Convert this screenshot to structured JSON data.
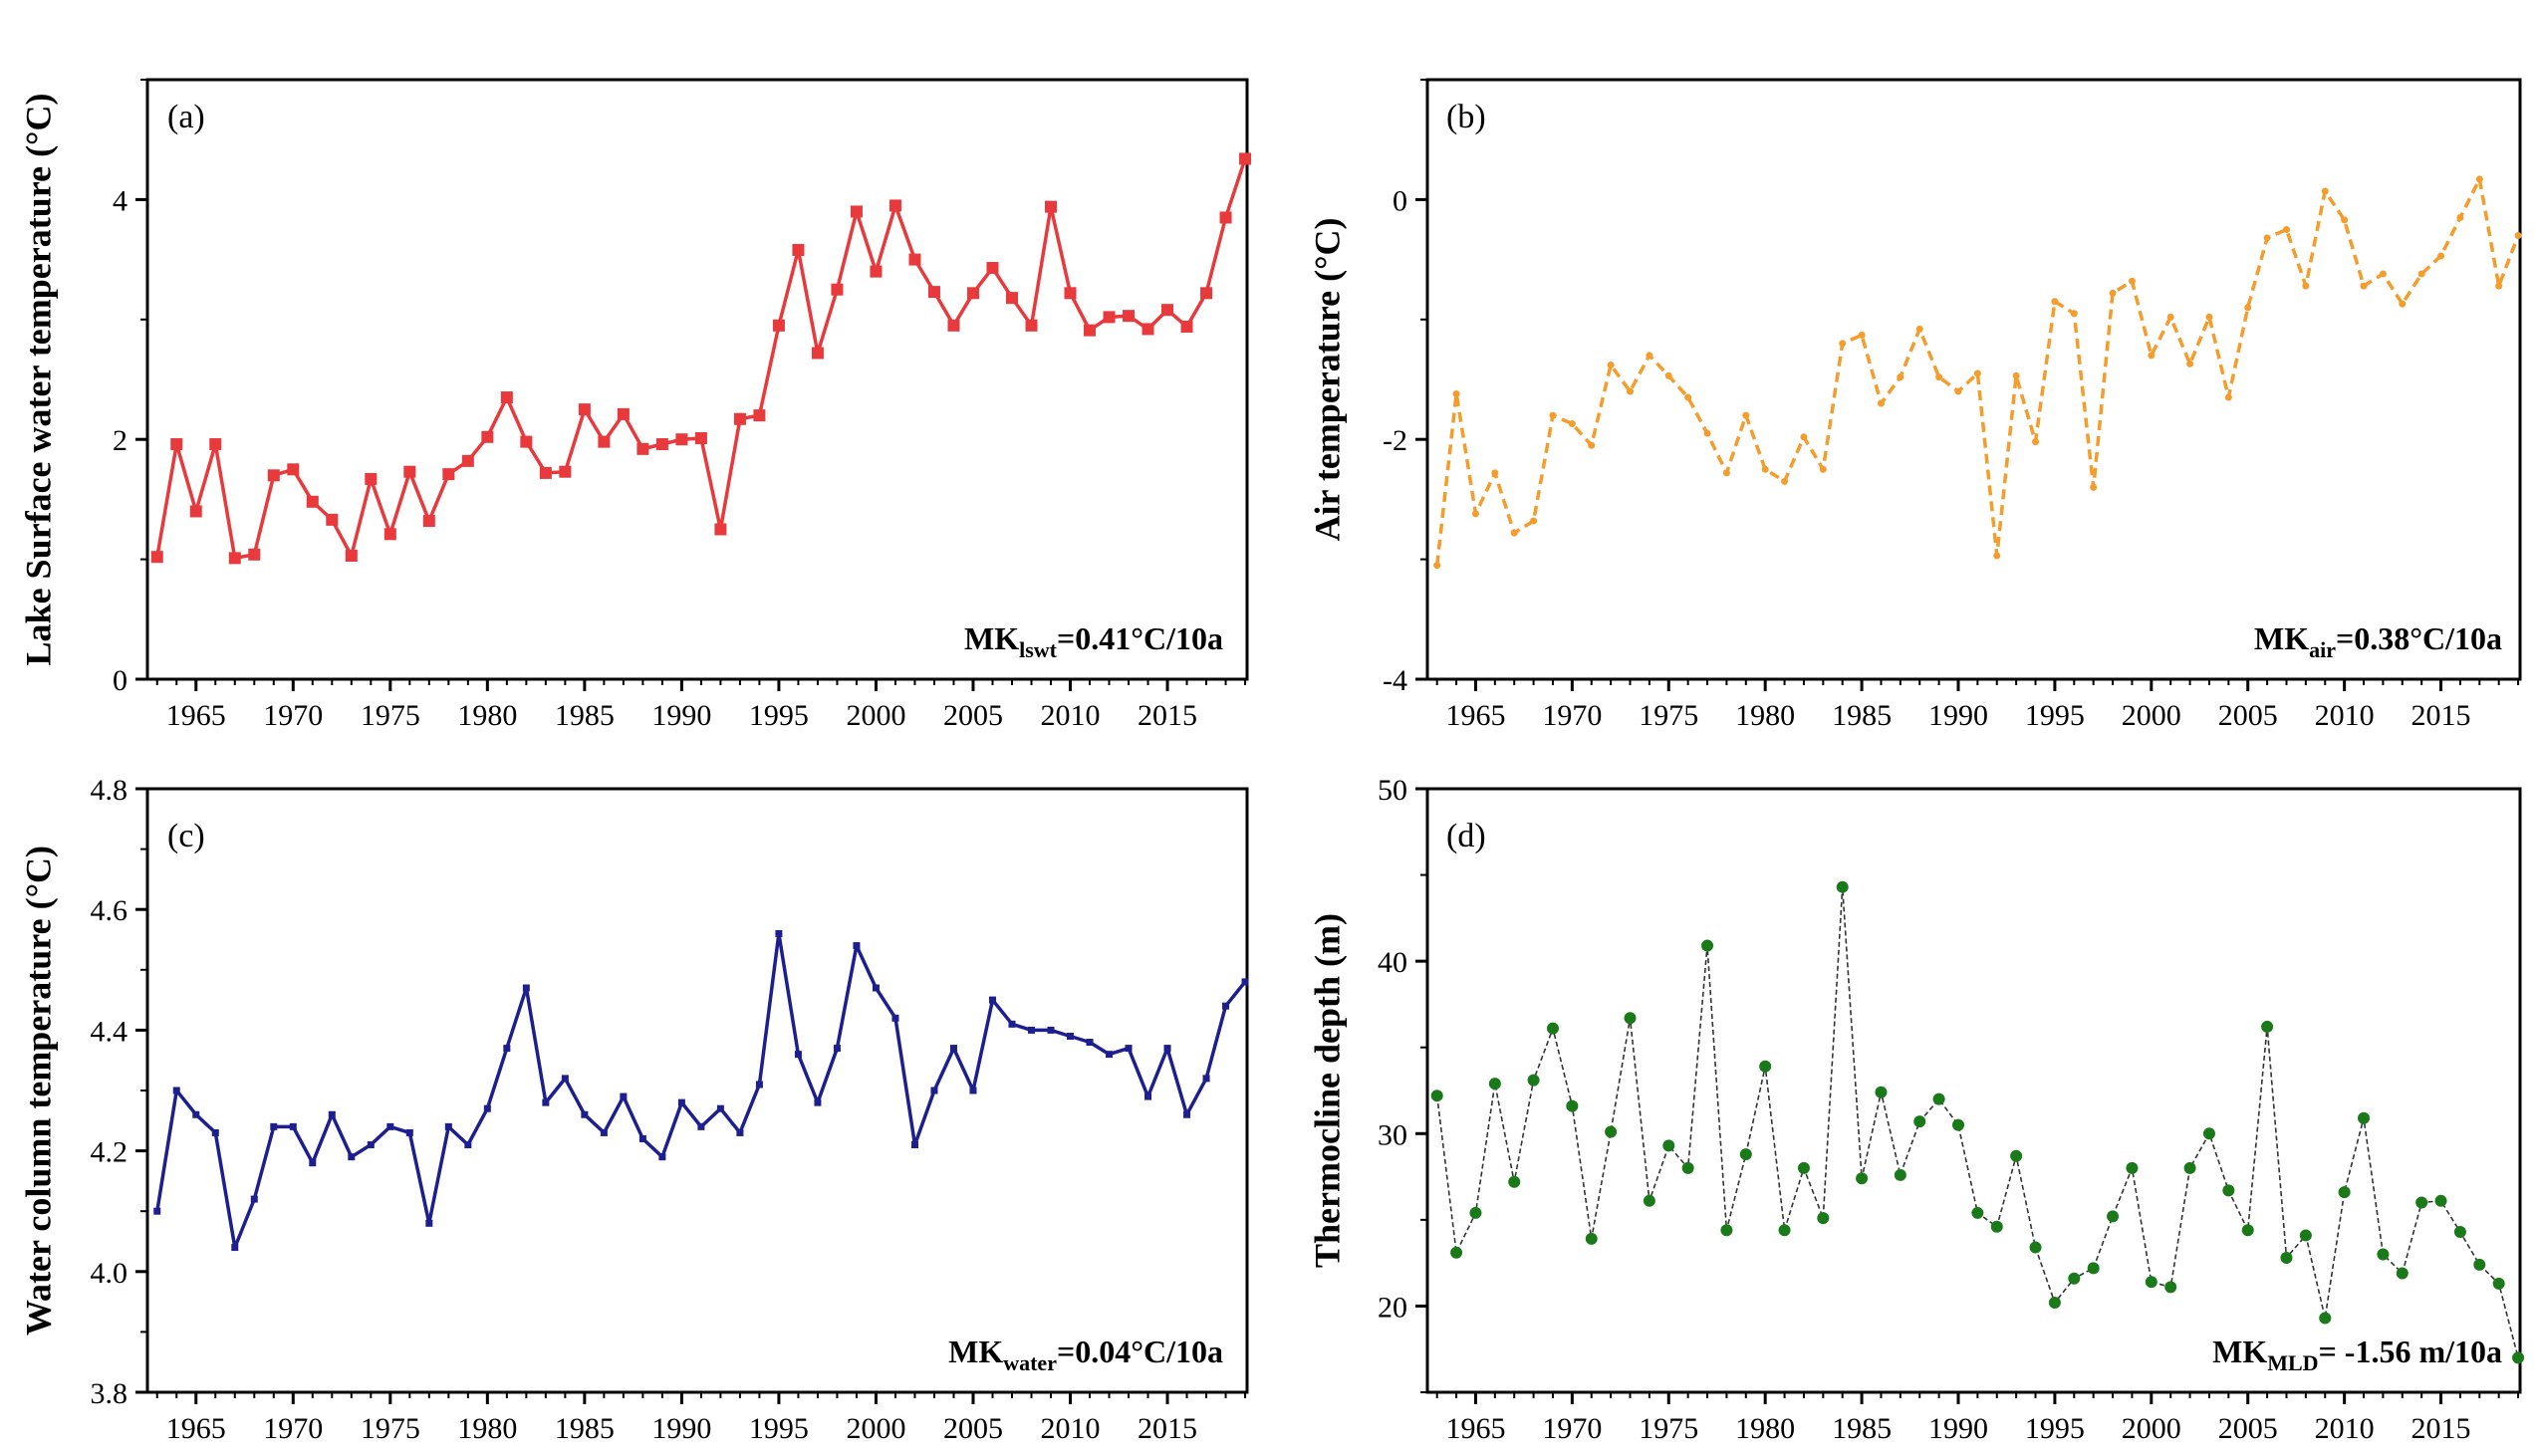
{
  "figure": {
    "panels_order": [
      "a",
      "b",
      "c",
      "d"
    ]
  },
  "chart_data": [
    {
      "id": "a",
      "type": "line",
      "panel_label": "(a)",
      "ylabel": "Lake Surface water temperature (°C)",
      "xlim": [
        1962.5,
        2019.1
      ],
      "ylim": [
        0,
        5
      ],
      "yticks": [
        0,
        2,
        4
      ],
      "ytick_labels": [
        "0",
        "2",
        "4"
      ],
      "xticks": [
        1965,
        1970,
        1975,
        1980,
        1985,
        1990,
        1995,
        2000,
        2005,
        2010,
        2015
      ],
      "xtick_labels": [
        "1965",
        "1970",
        "1975",
        "1980",
        "1985",
        "1990",
        "1995",
        "2000",
        "2005",
        "2010",
        "2015"
      ],
      "color": "#e8393c",
      "line_style": "solid",
      "marker": "square",
      "annotation": {
        "prefix": "MK",
        "sub": "lswt",
        "suffix": "=0.41°C/10a"
      },
      "x": [
        1963,
        1964,
        1965,
        1966,
        1967,
        1968,
        1969,
        1970,
        1971,
        1972,
        1973,
        1974,
        1975,
        1976,
        1977,
        1978,
        1979,
        1980,
        1981,
        1982,
        1983,
        1984,
        1985,
        1986,
        1987,
        1988,
        1989,
        1990,
        1991,
        1992,
        1993,
        1994,
        1995,
        1996,
        1997,
        1998,
        1999,
        2000,
        2001,
        2002,
        2003,
        2004,
        2005,
        2006,
        2007,
        2008,
        2009,
        2010,
        2011,
        2012,
        2013,
        2014,
        2015,
        2016,
        2017,
        2018,
        2019
      ],
      "values": [
        1.02,
        1.96,
        1.4,
        1.96,
        1.01,
        1.04,
        1.7,
        1.75,
        1.48,
        1.33,
        1.03,
        1.67,
        1.21,
        1.73,
        1.32,
        1.71,
        1.82,
        2.02,
        2.35,
        1.98,
        1.72,
        1.73,
        2.25,
        1.98,
        2.21,
        1.92,
        1.96,
        2.0,
        2.01,
        1.25,
        2.17,
        2.2,
        2.95,
        3.58,
        2.72,
        3.25,
        3.9,
        3.4,
        3.95,
        3.5,
        3.23,
        2.95,
        3.22,
        3.43,
        3.18,
        2.95,
        3.94,
        3.22,
        2.91,
        3.02,
        3.03,
        2.92,
        3.08,
        2.94,
        3.22,
        3.85,
        4.34
      ]
    },
    {
      "id": "b",
      "type": "line",
      "panel_label": "(b)",
      "ylabel": "Air temperature (°C)",
      "xlim": [
        1962.5,
        2019.1
      ],
      "ylim": [
        -4,
        1
      ],
      "yticks": [
        -4,
        -2,
        0
      ],
      "ytick_labels": [
        "-4",
        "-2",
        "0"
      ],
      "xticks": [
        1965,
        1970,
        1975,
        1980,
        1985,
        1990,
        1995,
        2000,
        2005,
        2010,
        2015
      ],
      "xtick_labels": [
        "1965",
        "1970",
        "1975",
        "1980",
        "1985",
        "1990",
        "1995",
        "2000",
        "2005",
        "2010",
        "2015"
      ],
      "color": "#f49c2c",
      "line_style": "dashed",
      "marker": "circle",
      "annotation": {
        "prefix": "MK",
        "sub": "air",
        "suffix": "=0.38°C/10a"
      },
      "x": [
        1963,
        1964,
        1965,
        1966,
        1967,
        1968,
        1969,
        1970,
        1971,
        1972,
        1973,
        1974,
        1975,
        1976,
        1977,
        1978,
        1979,
        1980,
        1981,
        1982,
        1983,
        1984,
        1985,
        1986,
        1987,
        1988,
        1989,
        1990,
        1991,
        1992,
        1993,
        1994,
        1995,
        1996,
        1997,
        1998,
        1999,
        2000,
        2001,
        2002,
        2003,
        2004,
        2005,
        2006,
        2007,
        2008,
        2009,
        2010,
        2011,
        2012,
        2013,
        2014,
        2015,
        2016,
        2017,
        2018,
        2019
      ],
      "values": [
        -3.05,
        -1.62,
        -2.62,
        -2.28,
        -2.78,
        -2.68,
        -1.8,
        -1.87,
        -2.05,
        -1.38,
        -1.6,
        -1.3,
        -1.47,
        -1.65,
        -1.95,
        -2.28,
        -1.8,
        -2.25,
        -2.35,
        -1.98,
        -2.25,
        -1.2,
        -1.13,
        -1.7,
        -1.48,
        -1.08,
        -1.48,
        -1.6,
        -1.45,
        -2.97,
        -1.47,
        -2.02,
        -0.85,
        -0.95,
        -2.4,
        -0.78,
        -0.68,
        -1.3,
        -0.98,
        -1.37,
        -0.98,
        -1.65,
        -0.9,
        -0.32,
        -0.25,
        -0.72,
        0.07,
        -0.17,
        -0.72,
        -0.62,
        -0.87,
        -0.62,
        -0.47,
        -0.15,
        0.17,
        -0.72,
        -0.3
      ]
    },
    {
      "id": "c",
      "type": "line",
      "panel_label": "(c)",
      "ylabel": "Water column temperature (°C)",
      "xlim": [
        1962.5,
        2019.1
      ],
      "ylim": [
        3.8,
        4.8
      ],
      "yticks": [
        3.8,
        4.0,
        4.2,
        4.4,
        4.6,
        4.8
      ],
      "ytick_labels": [
        "3.8",
        "4.0",
        "4.2",
        "4.4",
        "4.6",
        "4.8"
      ],
      "xticks": [
        1965,
        1970,
        1975,
        1980,
        1985,
        1990,
        1995,
        2000,
        2005,
        2010,
        2015
      ],
      "xtick_labels": [
        "1965",
        "1970",
        "1975",
        "1980",
        "1985",
        "1990",
        "1995",
        "2000",
        "2005",
        "2010",
        "2015"
      ],
      "color": "#1d1f8e",
      "line_style": "solid",
      "marker": "small-square",
      "annotation": {
        "prefix": "MK",
        "sub": "water",
        "suffix": "=0.04°C/10a"
      },
      "x": [
        1963,
        1964,
        1965,
        1966,
        1967,
        1968,
        1969,
        1970,
        1971,
        1972,
        1973,
        1974,
        1975,
        1976,
        1977,
        1978,
        1979,
        1980,
        1981,
        1982,
        1983,
        1984,
        1985,
        1986,
        1987,
        1988,
        1989,
        1990,
        1991,
        1992,
        1993,
        1994,
        1995,
        1996,
        1997,
        1998,
        1999,
        2000,
        2001,
        2002,
        2003,
        2004,
        2005,
        2006,
        2007,
        2008,
        2009,
        2010,
        2011,
        2012,
        2013,
        2014,
        2015,
        2016,
        2017,
        2018,
        2019
      ],
      "values": [
        4.1,
        4.3,
        4.26,
        4.23,
        4.04,
        4.12,
        4.24,
        4.24,
        4.18,
        4.26,
        4.19,
        4.21,
        4.24,
        4.23,
        4.08,
        4.24,
        4.21,
        4.27,
        4.37,
        4.47,
        4.28,
        4.32,
        4.26,
        4.23,
        4.29,
        4.22,
        4.19,
        4.28,
        4.24,
        4.27,
        4.23,
        4.31,
        4.56,
        4.36,
        4.28,
        4.37,
        4.54,
        4.47,
        4.42,
        4.21,
        4.3,
        4.37,
        4.3,
        4.45,
        4.41,
        4.4,
        4.4,
        4.39,
        4.38,
        4.36,
        4.37,
        4.29,
        4.37,
        4.26,
        4.32,
        4.44,
        4.48
      ]
    },
    {
      "id": "d",
      "type": "line",
      "panel_label": "(d)",
      "ylabel": "Thermocline depth (m)",
      "xlim": [
        1962.5,
        2019.1
      ],
      "ylim": [
        15,
        50
      ],
      "yticks": [
        20,
        30,
        40,
        50
      ],
      "ytick_labels": [
        "20",
        "30",
        "40",
        "50"
      ],
      "xticks": [
        1965,
        1970,
        1975,
        1980,
        1985,
        1990,
        1995,
        2000,
        2005,
        2010,
        2015
      ],
      "xtick_labels": [
        "1965",
        "1970",
        "1975",
        "1980",
        "1985",
        "1990",
        "1995",
        "2000",
        "2005",
        "2010",
        "2015"
      ],
      "color": "#1a7a1a",
      "line_color": "#333333",
      "line_style": "dashed-thin",
      "marker": "circle",
      "annotation": {
        "prefix": "MK",
        "sub": "MLD",
        "suffix": "= -1.56 m/10a"
      },
      "x": [
        1963,
        1964,
        1965,
        1966,
        1967,
        1968,
        1969,
        1970,
        1971,
        1972,
        1973,
        1974,
        1975,
        1976,
        1977,
        1978,
        1979,
        1980,
        1981,
        1982,
        1983,
        1984,
        1985,
        1986,
        1987,
        1988,
        1989,
        1990,
        1991,
        1992,
        1993,
        1994,
        1995,
        1996,
        1997,
        1998,
        1999,
        2000,
        2001,
        2002,
        2003,
        2004,
        2005,
        2006,
        2007,
        2008,
        2009,
        2010,
        2011,
        2012,
        2013,
        2014,
        2015,
        2016,
        2017,
        2018,
        2019
      ],
      "values": [
        32.2,
        23.1,
        25.4,
        32.9,
        27.2,
        33.1,
        36.1,
        31.6,
        23.9,
        30.1,
        36.7,
        26.1,
        29.3,
        28.0,
        40.9,
        24.4,
        28.8,
        33.9,
        24.4,
        28.0,
        25.1,
        44.3,
        27.4,
        32.4,
        27.6,
        30.7,
        32.0,
        30.5,
        25.4,
        24.6,
        28.7,
        23.4,
        20.2,
        21.6,
        22.2,
        25.2,
        28.0,
        21.4,
        21.1,
        28.0,
        30.0,
        26.7,
        24.4,
        36.2,
        22.8,
        24.1,
        19.3,
        26.6,
        30.9,
        23.0,
        21.9,
        26.0,
        26.1,
        24.3,
        22.4,
        21.3,
        17.0
      ]
    }
  ]
}
